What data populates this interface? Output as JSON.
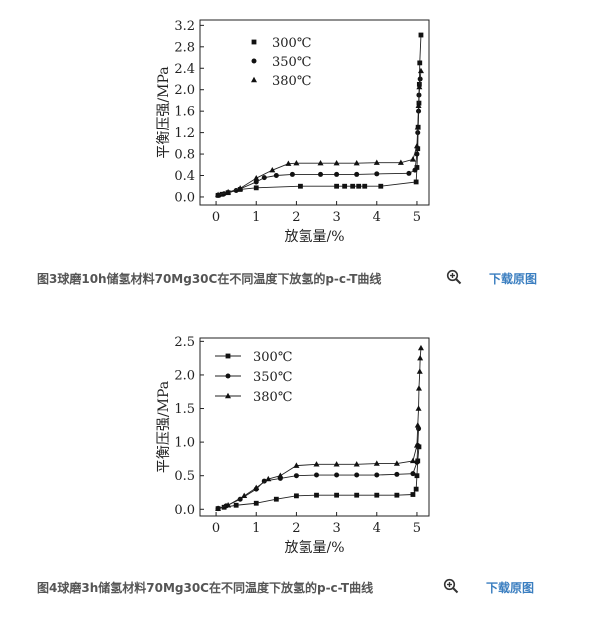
{
  "figures": [
    {
      "caption": "图3球磨10h储氢材料70Mg30C在不同温度下放氢的p-c-T曲线",
      "download_label": "下载原图",
      "zoom_icon": "zoom-in-icon",
      "chart_data": {
        "type": "line",
        "xlabel": "放氢量/%",
        "ylabel": "平衡压强/MPa",
        "xlim": [
          -0.4,
          5.3
        ],
        "ylim": [
          -0.15,
          3.3
        ],
        "xticks": [
          0,
          1,
          2,
          3,
          4,
          5
        ],
        "yticks": [
          0.0,
          0.4,
          0.8,
          1.2,
          1.6,
          2.0,
          2.4,
          2.8,
          3.2
        ],
        "ytick_labels": [
          "0.0",
          "0.4",
          "0.8",
          "1.2",
          "1.6",
          "2.0",
          "2.4",
          "2.8",
          "3.2"
        ],
        "legend_position": "top-left",
        "grid": false,
        "series": [
          {
            "name": "300℃",
            "marker": "square",
            "points": [
              [
                0.05,
                0.03
              ],
              [
                0.15,
                0.05
              ],
              [
                0.3,
                0.08
              ],
              [
                0.6,
                0.14
              ],
              [
                1.0,
                0.17
              ],
              [
                2.1,
                0.2
              ],
              [
                3.0,
                0.2
              ],
              [
                3.2,
                0.2
              ],
              [
                3.4,
                0.2
              ],
              [
                3.55,
                0.2
              ],
              [
                3.7,
                0.2
              ],
              [
                4.1,
                0.2
              ],
              [
                4.98,
                0.28
              ],
              [
                5.0,
                0.55
              ],
              [
                5.02,
                0.9
              ],
              [
                5.03,
                1.3
              ],
              [
                5.05,
                1.75
              ],
              [
                5.06,
                2.1
              ],
              [
                5.07,
                2.5
              ],
              [
                5.1,
                3.02
              ]
            ]
          },
          {
            "name": "350℃",
            "marker": "circle",
            "points": [
              [
                0.05,
                0.03
              ],
              [
                0.2,
                0.06
              ],
              [
                0.5,
                0.12
              ],
              [
                1.0,
                0.28
              ],
              [
                1.2,
                0.36
              ],
              [
                1.5,
                0.4
              ],
              [
                1.9,
                0.42
              ],
              [
                2.6,
                0.42
              ],
              [
                3.0,
                0.42
              ],
              [
                3.5,
                0.42
              ],
              [
                4.0,
                0.43
              ],
              [
                4.8,
                0.44
              ],
              [
                4.95,
                0.5
              ],
              [
                5.0,
                0.8
              ],
              [
                5.02,
                1.2
              ],
              [
                5.04,
                1.6
              ],
              [
                5.05,
                1.9
              ],
              [
                5.08,
                2.2
              ]
            ]
          },
          {
            "name": "380℃",
            "marker": "triangle",
            "points": [
              [
                0.05,
                0.04
              ],
              [
                0.3,
                0.09
              ],
              [
                0.6,
                0.16
              ],
              [
                1.0,
                0.35
              ],
              [
                1.4,
                0.5
              ],
              [
                1.8,
                0.62
              ],
              [
                2.0,
                0.63
              ],
              [
                2.6,
                0.63
              ],
              [
                3.0,
                0.63
              ],
              [
                3.5,
                0.63
              ],
              [
                4.0,
                0.64
              ],
              [
                4.6,
                0.64
              ],
              [
                4.9,
                0.7
              ],
              [
                5.0,
                0.95
              ],
              [
                5.02,
                1.3
              ],
              [
                5.04,
                1.7
              ],
              [
                5.06,
                2.05
              ],
              [
                5.1,
                2.35
              ]
            ]
          }
        ]
      }
    },
    {
      "caption": "图4球磨3h储氢材料70Mg30C在不同温度下放氢的p-c-T曲线",
      "download_label": "下载原图",
      "zoom_icon": "zoom-in-icon",
      "chart_data": {
        "type": "line",
        "xlabel": "放氢量/%",
        "ylabel": "平衡压强/MPa",
        "xlim": [
          -0.4,
          5.3
        ],
        "ylim": [
          -0.1,
          2.55
        ],
        "xticks": [
          0,
          1,
          2,
          3,
          4,
          5
        ],
        "yticks": [
          0.0,
          0.5,
          1.0,
          1.5,
          2.0,
          2.5
        ],
        "ytick_labels": [
          "0.0",
          "0.5",
          "1.0",
          "1.5",
          "2.0",
          "2.5"
        ],
        "legend_position": "top-left",
        "grid": false,
        "series": [
          {
            "name": "300℃",
            "marker": "square",
            "points": [
              [
                0.05,
                0.01
              ],
              [
                0.2,
                0.03
              ],
              [
                0.5,
                0.06
              ],
              [
                1.0,
                0.09
              ],
              [
                1.5,
                0.15
              ],
              [
                2.0,
                0.2
              ],
              [
                2.5,
                0.21
              ],
              [
                3.0,
                0.21
              ],
              [
                3.5,
                0.21
              ],
              [
                4.0,
                0.21
              ],
              [
                4.5,
                0.21
              ],
              [
                4.9,
                0.22
              ],
              [
                4.98,
                0.3
              ],
              [
                5.0,
                0.5
              ],
              [
                5.02,
                0.72
              ],
              [
                5.05,
                0.93
              ]
            ]
          },
          {
            "name": "350℃",
            "marker": "circle",
            "points": [
              [
                0.05,
                0.01
              ],
              [
                0.25,
                0.05
              ],
              [
                0.6,
                0.15
              ],
              [
                1.0,
                0.3
              ],
              [
                1.2,
                0.42
              ],
              [
                1.6,
                0.46
              ],
              [
                2.0,
                0.5
              ],
              [
                2.5,
                0.51
              ],
              [
                3.0,
                0.51
              ],
              [
                3.5,
                0.51
              ],
              [
                4.0,
                0.51
              ],
              [
                4.5,
                0.52
              ],
              [
                4.9,
                0.53
              ],
              [
                5.0,
                0.7
              ],
              [
                5.02,
                0.95
              ],
              [
                5.04,
                1.2
              ]
            ]
          },
          {
            "name": "380℃",
            "marker": "triangle",
            "points": [
              [
                0.05,
                0.01
              ],
              [
                0.3,
                0.06
              ],
              [
                0.7,
                0.2
              ],
              [
                1.0,
                0.32
              ],
              [
                1.3,
                0.45
              ],
              [
                1.6,
                0.5
              ],
              [
                2.0,
                0.65
              ],
              [
                2.5,
                0.67
              ],
              [
                3.0,
                0.67
              ],
              [
                3.5,
                0.67
              ],
              [
                4.0,
                0.68
              ],
              [
                4.5,
                0.68
              ],
              [
                4.9,
                0.72
              ],
              [
                5.0,
                0.95
              ],
              [
                5.02,
                1.25
              ],
              [
                5.04,
                1.5
              ],
              [
                5.05,
                1.8
              ],
              [
                5.07,
                2.05
              ],
              [
                5.08,
                2.25
              ],
              [
                5.1,
                2.4
              ]
            ]
          }
        ]
      }
    }
  ]
}
